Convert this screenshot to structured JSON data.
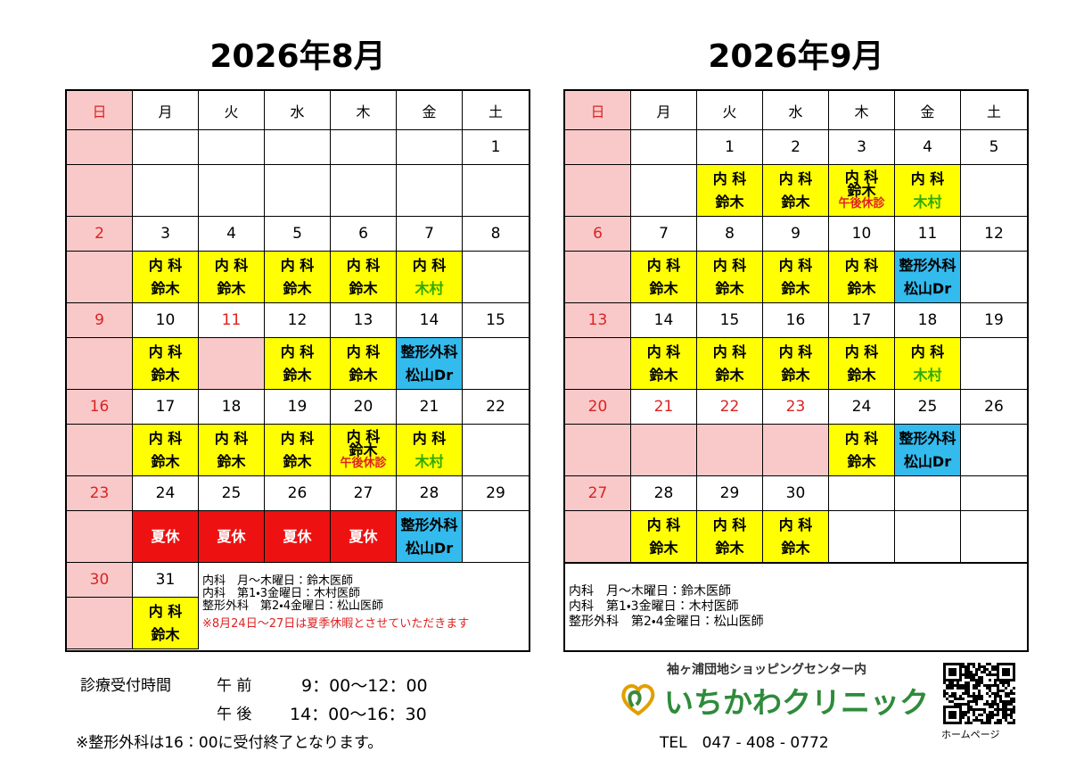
{
  "calendars": [
    {
      "title": "2026年8月",
      "weekdays": [
        "日",
        "月",
        "火",
        "水",
        "木",
        "金",
        "土"
      ],
      "weeks": [
        [
          {},
          {},
          {},
          {},
          {},
          {},
          {
            "day": 1
          }
        ],
        [
          {
            "day": 2
          },
          {
            "day": 3,
            "lines": [
              "内 科",
              "鈴木"
            ],
            "bg": "#ffff00"
          },
          {
            "day": 4,
            "lines": [
              "内 科",
              "鈴木"
            ],
            "bg": "#ffff00"
          },
          {
            "day": 5,
            "lines": [
              "内 科",
              "鈴木"
            ],
            "bg": "#ffff00"
          },
          {
            "day": 6,
            "lines": [
              "内 科",
              "鈴木"
            ],
            "bg": "#ffff00"
          },
          {
            "day": 7,
            "lines": [
              "内 科",
              "木村"
            ],
            "bg": "#ffff00",
            "colors": [
              "#000000",
              "#33aa00"
            ]
          },
          {
            "day": 8
          }
        ],
        [
          {
            "day": 9
          },
          {
            "day": 10,
            "lines": [
              "内 科",
              "鈴木"
            ],
            "bg": "#ffff00"
          },
          {
            "day": 11,
            "holiday": true
          },
          {
            "day": 12,
            "lines": [
              "内 科",
              "鈴木"
            ],
            "bg": "#ffff00"
          },
          {
            "day": 13,
            "lines": [
              "内 科",
              "鈴木"
            ],
            "bg": "#ffff00"
          },
          {
            "day": 14,
            "lines": [
              "整形外科",
              "松山Dr"
            ],
            "bg": "#33bbee"
          },
          {
            "day": 15
          }
        ],
        [
          {
            "day": 16
          },
          {
            "day": 17,
            "lines": [
              "内 科",
              "鈴木"
            ],
            "bg": "#ffff00"
          },
          {
            "day": 18,
            "lines": [
              "内 科",
              "鈴木"
            ],
            "bg": "#ffff00"
          },
          {
            "day": 19,
            "lines": [
              "内 科",
              "鈴木"
            ],
            "bg": "#ffff00"
          },
          {
            "day": 20,
            "lines": [
              "内 科",
              "鈴木",
              "午後休診"
            ],
            "bg": "#ffff00",
            "colors": [
              "#000000",
              "#000000",
              "#dd2222"
            ]
          },
          {
            "day": 21,
            "lines": [
              "内 科",
              "木村"
            ],
            "bg": "#ffff00",
            "colors": [
              "#000000",
              "#33aa00"
            ]
          },
          {
            "day": 22
          }
        ],
        [
          {
            "day": 23
          },
          {
            "day": 24,
            "lines": [
              "夏休"
            ],
            "bg": "#ee1111",
            "colors": [
              "#ffffff"
            ]
          },
          {
            "day": 25,
            "lines": [
              "夏休"
            ],
            "bg": "#ee1111",
            "colors": [
              "#ffffff"
            ]
          },
          {
            "day": 26,
            "lines": [
              "夏休"
            ],
            "bg": "#ee1111",
            "colors": [
              "#ffffff"
            ]
          },
          {
            "day": 27,
            "lines": [
              "夏休"
            ],
            "bg": "#ee1111",
            "colors": [
              "#ffffff"
            ]
          },
          {
            "day": 28,
            "lines": [
              "整形外科",
              "松山Dr"
            ],
            "bg": "#33bbee"
          },
          {
            "day": 29
          }
        ],
        [
          {
            "day": 30
          },
          {
            "day": 31,
            "lines": [
              "内 科",
              "鈴木"
            ],
            "bg": "#ffff00"
          }
        ]
      ],
      "notes": [
        "内科　月～木曜日：鈴木医師",
        "内科　第1・3金曜日：木村医師",
        "整形外科　第2・4金曜日：松山医師",
        "※8月24日～27日は夏季休暇とさせていただきます"
      ],
      "note_colors": [
        "#000000",
        "#000000",
        "#000000",
        "#dd2222"
      ]
    },
    {
      "title": "2026年9月",
      "weekdays": [
        "日",
        "月",
        "火",
        "水",
        "木",
        "金",
        "土"
      ],
      "weeks": [
        [
          {},
          {},
          {
            "day": 1,
            "lines": [
              "内 科",
              "鈴木"
            ],
            "bg": "#ffff00"
          },
          {
            "day": 2,
            "lines": [
              "内 科",
              "鈴木"
            ],
            "bg": "#ffff00"
          },
          {
            "day": 3,
            "lines": [
              "内 科",
              "鈴木",
              "午後休診"
            ],
            "bg": "#ffff00",
            "colors": [
              "#000000",
              "#000000",
              "#dd2222"
            ]
          },
          {
            "day": 4,
            "lines": [
              "内 科",
              "木村"
            ],
            "bg": "#ffff00",
            "colors": [
              "#000000",
              "#33aa00"
            ]
          },
          {
            "day": 5
          }
        ],
        [
          {
            "day": 6
          },
          {
            "day": 7,
            "lines": [
              "内 科",
              "鈴木"
            ],
            "bg": "#ffff00"
          },
          {
            "day": 8,
            "lines": [
              "内 科",
              "鈴木"
            ],
            "bg": "#ffff00"
          },
          {
            "day": 9,
            "lines": [
              "内 科",
              "鈴木"
            ],
            "bg": "#ffff00"
          },
          {
            "day": 10,
            "lines": [
              "内 科",
              "鈴木"
            ],
            "bg": "#ffff00"
          },
          {
            "day": 11,
            "lines": [
              "整形外科",
              "松山Dr"
            ],
            "bg": "#33bbee"
          },
          {
            "day": 12
          }
        ],
        [
          {
            "day": 13
          },
          {
            "day": 14,
            "lines": [
              "内 科",
              "鈴木"
            ],
            "bg": "#ffff00"
          },
          {
            "day": 15,
            "lines": [
              "内 科",
              "鈴木"
            ],
            "bg": "#ffff00"
          },
          {
            "day": 16,
            "lines": [
              "内 科",
              "鈴木"
            ],
            "bg": "#ffff00"
          },
          {
            "day": 17,
            "lines": [
              "内 科",
              "鈴木"
            ],
            "bg": "#ffff00"
          },
          {
            "day": 18,
            "lines": [
              "内 科",
              "木村"
            ],
            "bg": "#ffff00",
            "colors": [
              "#000000",
              "#33aa00"
            ]
          },
          {
            "day": 19
          }
        ],
        [
          {
            "day": 20
          },
          {
            "day": 21,
            "holiday": true
          },
          {
            "day": 22,
            "holiday": true
          },
          {
            "day": 23,
            "holiday": true
          },
          {
            "day": 24,
            "lines": [
              "内 科",
              "鈴木"
            ],
            "bg": "#ffff00"
          },
          {
            "day": 25,
            "lines": [
              "整形外科",
              "松山Dr"
            ],
            "bg": "#33bbee"
          },
          {
            "day": 26
          }
        ],
        [
          {
            "day": 27
          },
          {
            "day": 28,
            "lines": [
              "内 科",
              "鈴木"
            ],
            "bg": "#ffff00"
          },
          {
            "day": 29,
            "lines": [
              "内 科",
              "鈴木"
            ],
            "bg": "#ffff00"
          },
          {
            "day": 30,
            "lines": [
              "内 科",
              "鈴木"
            ],
            "bg": "#ffff00"
          },
          {},
          {},
          {}
        ]
      ],
      "notes": [
        "内科　月～木曜日：鈴木医師",
        "内科　第1・3金曜日：木村医師",
        "整形外科　第2・4金曜日：松山医師"
      ],
      "note_colors": [
        "#000000",
        "#000000",
        "#000000"
      ]
    }
  ],
  "hours": {
    "label": "診療受付時間",
    "am": "午 前",
    "am_time": "9：00～12：00",
    "pm": "午 後",
    "pm_time": "14：00～16：30",
    "note": "※整形外科は16：00に受付終了となります。"
  },
  "clinic": {
    "location": "袖ヶ浦団地ショッピングセンター内",
    "name": "いちかわクリニック",
    "tel": "TEL　047 - 408 - 0772",
    "homepage": "ホームページ"
  }
}
